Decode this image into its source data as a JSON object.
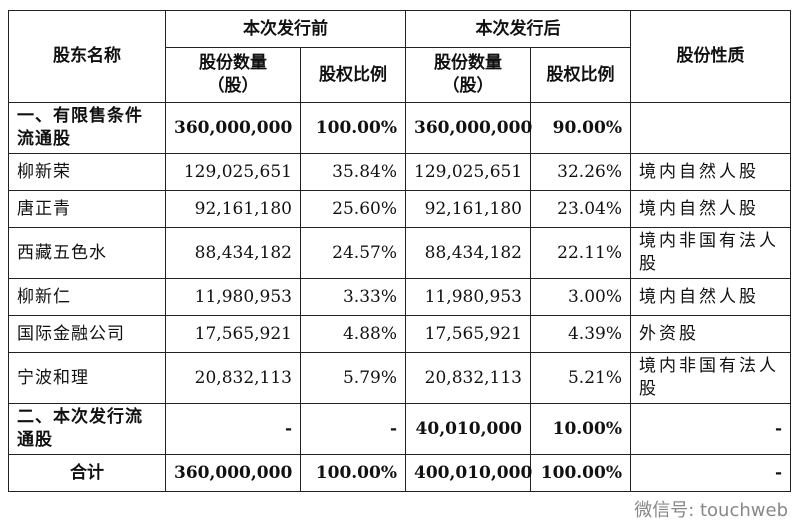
{
  "table": {
    "header": {
      "name": "股东名称",
      "before": "本次发行前",
      "after": "本次发行后",
      "nature": "股份性质",
      "qty_lines": [
        "股份数量",
        "（股）"
      ],
      "pct": "股权比例"
    },
    "rows": [
      {
        "name": "一、有限售条件流通股",
        "before_qty": "360,000,000",
        "before_pct": "100.00%",
        "after_qty": "360,000,000",
        "after_pct": "90.00%"
      },
      {
        "name": "柳新荣",
        "before_qty": "129,025,651",
        "before_pct": "35.84%",
        "after_qty": "129,025,651",
        "after_pct": "32.26%",
        "nature": "境内自然人股"
      },
      {
        "name": "唐正青",
        "before_qty": "92,161,180",
        "before_pct": "25.60%",
        "after_qty": "92,161,180",
        "after_pct": "23.04%",
        "nature": "境内自然人股"
      },
      {
        "name": "西藏五色水",
        "before_qty": "88,434,182",
        "before_pct": "24.57%",
        "after_qty": "88,434,182",
        "after_pct": "22.11%",
        "nature": "境内非国有法人股"
      },
      {
        "name": "柳新仁",
        "before_qty": "11,980,953",
        "before_pct": "3.33%",
        "after_qty": "11,980,953",
        "after_pct": "3.00%",
        "nature": "境内自然人股"
      },
      {
        "name": "国际金融公司",
        "before_qty": "17,565,921",
        "before_pct": "4.88%",
        "after_qty": "17,565,921",
        "after_pct": "4.39%",
        "nature": "外资股"
      },
      {
        "name": "宁波和理",
        "before_qty": "20,832,113",
        "before_pct": "5.79%",
        "after_qty": "20,832,113",
        "after_pct": "5.21%",
        "nature": "境内非国有法人股"
      },
      {
        "name": "二、本次发行流通股",
        "before_qty": "-",
        "before_pct": "-",
        "after_qty": "40,010,000",
        "after_pct": "10.00%",
        "nature": "-"
      },
      {
        "name": "合计",
        "before_qty": "360,000,000",
        "before_pct": "100.00%",
        "after_qty": "400,010,000",
        "after_pct": "100.00%",
        "nature": "-"
      }
    ]
  },
  "watermark": "微信号: touchweb"
}
